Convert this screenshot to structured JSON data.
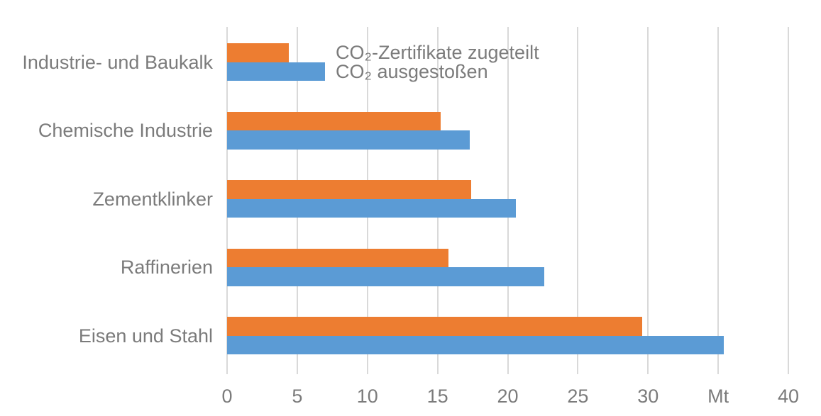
{
  "chart_data": {
    "type": "bar",
    "orientation": "horizontal",
    "title": "",
    "xlabel": "",
    "ylabel": "",
    "unit": "Mt",
    "categories": [
      "Industrie- und Baukalk",
      "Chemische Industrie",
      "Zementklinker",
      "Raffinerien",
      "Eisen und Stahl"
    ],
    "series": [
      {
        "name": "CO₂-Zertifikate zugeteilt",
        "color": "#ED7D31",
        "values": [
          4.4,
          15.2,
          17.4,
          15.8,
          29.6
        ]
      },
      {
        "name": "CO₂ ausgestoßen",
        "color": "#5B9BD5",
        "values": [
          7.0,
          17.3,
          20.6,
          22.6,
          35.4
        ]
      }
    ],
    "x_axis": {
      "min": 0,
      "max": 40,
      "tick_step": 5,
      "tick_labels": [
        "0",
        "5",
        "10",
        "15",
        "20",
        "25",
        "30",
        "Mt",
        "40"
      ]
    },
    "grid": true,
    "legend_position": "inside top, right of first bar group",
    "colors": {
      "text": "#7B7B7B",
      "gridline": "#D9D9D9",
      "background": "#FFFFFF"
    }
  }
}
